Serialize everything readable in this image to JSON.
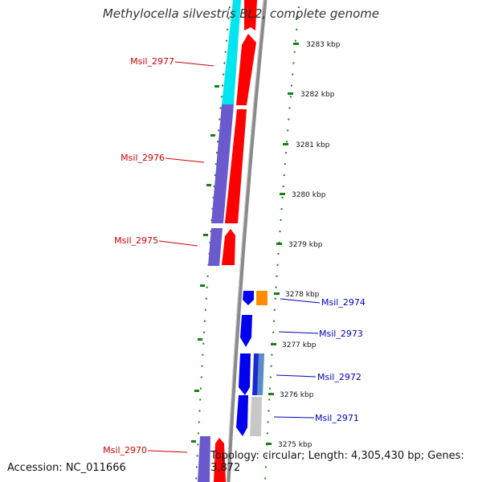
{
  "title": "Methylocella silvestris BL2, complete genome",
  "footer": {
    "accession": "Accession: NC_011666",
    "topology": "Topology: circular; Length: 4,305,430 bp; Genes: 3,872"
  },
  "colors": {
    "backbone": "#8a8a8a",
    "tick": "#1a7d1a",
    "left_label": "#cc0000",
    "right_label": "#0000bb"
  },
  "ticks": [
    {
      "label": "3283 kbp"
    },
    {
      "label": "3282 kbp"
    },
    {
      "label": "3281 kbp"
    },
    {
      "label": "3280 kbp"
    },
    {
      "label": "3279 kbp"
    },
    {
      "label": "3278 kbp"
    },
    {
      "label": "3277 kbp"
    },
    {
      "label": "3276 kbp"
    },
    {
      "label": "3275 kbp"
    }
  ],
  "genes": {
    "left": [
      {
        "label": "Msil_2977"
      },
      {
        "label": "Msil_2976"
      },
      {
        "label": "Msil_2975"
      },
      {
        "label": "Msil_2970"
      }
    ],
    "right": [
      {
        "label": "Msil_2974"
      },
      {
        "label": "Msil_2973"
      },
      {
        "label": "Msil_2972"
      },
      {
        "label": "Msil_2971"
      }
    ]
  }
}
